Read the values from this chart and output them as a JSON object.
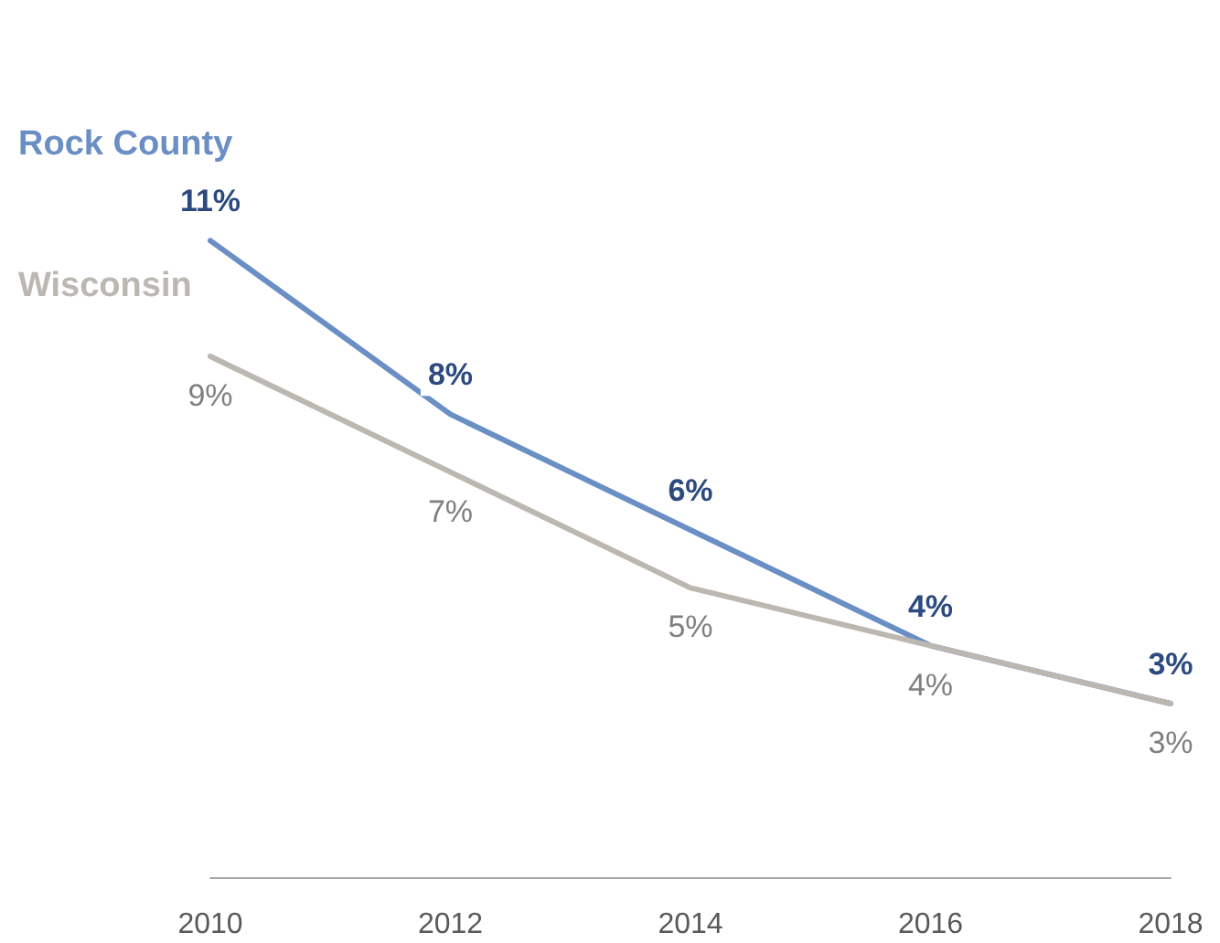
{
  "chart_data": {
    "type": "line",
    "categories": [
      "2010",
      "2012",
      "2014",
      "2016",
      "2018"
    ],
    "series": [
      {
        "name": "Rock County",
        "color": "#6a8fc4",
        "values": [
          11,
          8,
          6,
          4,
          3
        ],
        "value_labels": [
          "11%",
          "8%",
          "6%",
          "4%",
          "3%"
        ]
      },
      {
        "name": "Wisconsin",
        "color": "#bdb7b2",
        "values": [
          9,
          7,
          5,
          4,
          3
        ],
        "value_labels": [
          "9%",
          "7%",
          "5%",
          "4%",
          "3%"
        ]
      }
    ],
    "tick_labels": "x",
    "grid": false,
    "legend": false,
    "marker": "none",
    "line_style": "solid"
  }
}
